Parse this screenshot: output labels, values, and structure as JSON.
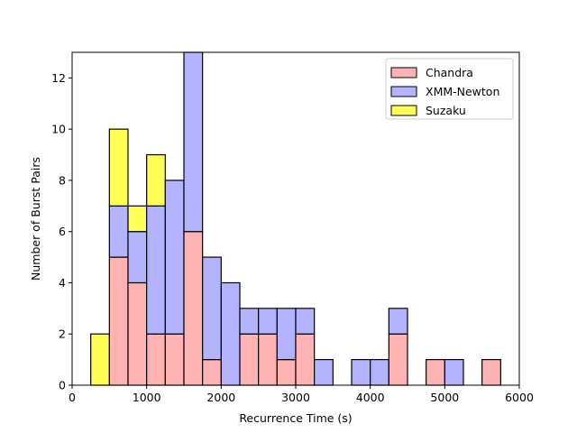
{
  "chart_data": {
    "type": "bar",
    "stacked": true,
    "bin_width": 250,
    "bin_starts": [
      250,
      500,
      750,
      1000,
      1250,
      1500,
      1750,
      2000,
      2250,
      2500,
      2750,
      3000,
      3250,
      3500,
      3750,
      4000,
      4250,
      4500,
      4750,
      5000,
      5250,
      5500
    ],
    "series": [
      {
        "name": "Chandra",
        "color": "#ffb3b3",
        "values": [
          0,
          5,
          4,
          2,
          2,
          6,
          1,
          0,
          2,
          2,
          1,
          2,
          0,
          0,
          0,
          0,
          2,
          0,
          1,
          0,
          0,
          1
        ]
      },
      {
        "name": "XMM-Newton",
        "color": "#b3b3ff",
        "values": [
          0,
          2,
          2,
          5,
          6,
          7,
          4,
          4,
          1,
          1,
          2,
          1,
          1,
          0,
          1,
          1,
          1,
          0,
          0,
          1,
          0,
          0
        ]
      },
      {
        "name": "Suzaku",
        "color": "#ffff55",
        "values": [
          2,
          3,
          1,
          2,
          0,
          0,
          0,
          0,
          0,
          0,
          0,
          0,
          0,
          0,
          0,
          0,
          0,
          0,
          0,
          0,
          0,
          0
        ]
      }
    ],
    "xlabel": "Recurrence Time (s)",
    "ylabel": "Number of Burst Pairs",
    "xlim": [
      0,
      6000
    ],
    "ylim": [
      0,
      13
    ],
    "xticks": [
      0,
      1000,
      2000,
      3000,
      4000,
      5000,
      6000
    ],
    "yticks": [
      0,
      2,
      4,
      6,
      8,
      10,
      12
    ],
    "legend_position": "top-right",
    "grid": false
  }
}
